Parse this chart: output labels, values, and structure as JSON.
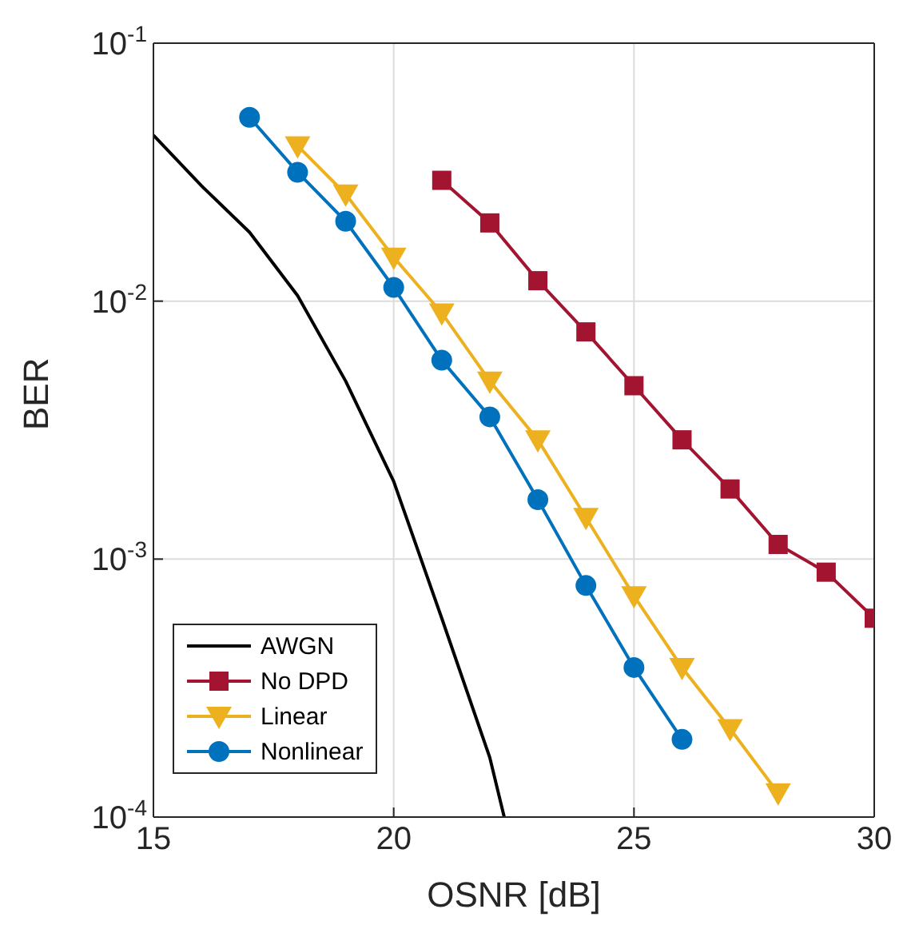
{
  "chart_data": {
    "type": "line",
    "xlabel": "OSNR [dB]",
    "ylabel": "BER",
    "log": "y",
    "grid": true,
    "legend": "bottom left",
    "xlim": [
      15,
      30
    ],
    "xticks": [
      15,
      20,
      25,
      30
    ],
    "ylim": [
      0.0001,
      0.1
    ],
    "yticks": [
      {
        "value": 0.0001,
        "label": "10$^{-4}$"
      },
      {
        "value": 0.001,
        "label": "10$^{-3}$"
      },
      {
        "value": 0.01,
        "label": "10$^{-2}$"
      },
      {
        "value": 0.1,
        "label": "10$^{-1}$"
      }
    ],
    "series": [
      {
        "name": "AWGN",
        "color": "#000000",
        "marker": "none",
        "x": [
          15,
          16,
          17,
          18,
          19,
          20,
          21,
          22,
          22.3
        ],
        "values": [
          0.044,
          0.028,
          0.0185,
          0.0105,
          0.0049,
          0.002,
          0.00059,
          0.00017,
          0.0001
        ]
      },
      {
        "name": "No DPD",
        "color": "#a2142f",
        "marker": "square",
        "x": [
          21,
          22,
          23,
          24,
          25,
          26,
          27,
          28,
          29,
          30
        ],
        "values": [
          0.0294,
          0.0201,
          0.012,
          0.0076,
          0.0047,
          0.0029,
          0.00187,
          0.00114,
          0.00089,
          0.00059
        ]
      },
      {
        "name": "Linear",
        "color": "#edb120",
        "marker": "triangle",
        "x": [
          18,
          19,
          20,
          21,
          22,
          23,
          24,
          25,
          26,
          27,
          28
        ],
        "values": [
          0.04,
          0.026,
          0.0148,
          0.009,
          0.0049,
          0.0029,
          0.00145,
          0.00072,
          0.00038,
          0.00022,
          0.000124
        ]
      },
      {
        "name": "Nonlinear",
        "color": "#0072bd",
        "marker": "circle",
        "x": [
          17,
          18,
          19,
          20,
          21,
          22,
          23,
          24,
          25,
          26
        ],
        "values": [
          0.0516,
          0.0316,
          0.0204,
          0.0113,
          0.0059,
          0.00356,
          0.0017,
          0.00079,
          0.00038,
          0.0002
        ]
      }
    ]
  }
}
